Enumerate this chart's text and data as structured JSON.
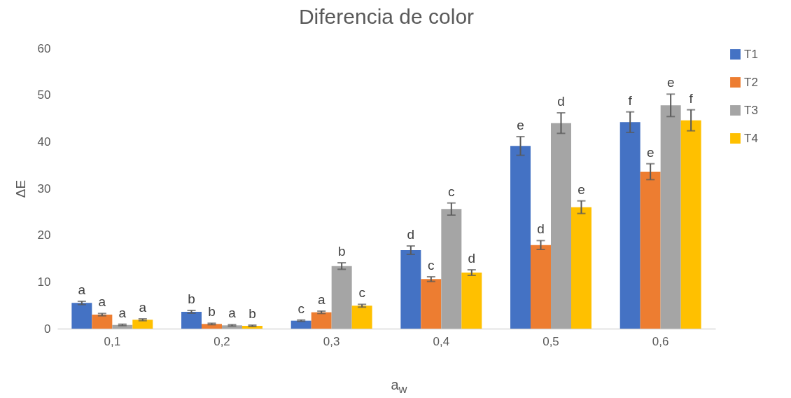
{
  "chart_data": {
    "type": "bar",
    "title": "Diferencia de color",
    "xlabel": "a$_{w}$",
    "ylabel": "ΔE",
    "categories": [
      "0,1",
      "0,2",
      "0,3",
      "0,4",
      "0,5",
      "0,6"
    ],
    "series": [
      {
        "name": "T1",
        "color": "#4472c4",
        "values": [
          5.5,
          3.6,
          1.7,
          16.8,
          39.1,
          44.2
        ],
        "errors": [
          0.35,
          0.3,
          0.15,
          0.9,
          2.0,
          2.2
        ],
        "value_labels": [
          "a",
          "b",
          "c",
          "d",
          "e",
          "f"
        ]
      },
      {
        "name": "T2",
        "color": "#ed7d31",
        "values": [
          3.0,
          1.0,
          3.5,
          10.6,
          17.9,
          33.6
        ],
        "errors": [
          0.25,
          0.15,
          0.25,
          0.5,
          0.95,
          1.7
        ],
        "value_labels": [
          "a",
          "b",
          "a",
          "c",
          "d",
          "e"
        ]
      },
      {
        "name": "T3",
        "color": "#a5a5a5",
        "values": [
          0.8,
          0.7,
          13.4,
          25.6,
          44.0,
          47.8
        ],
        "errors": [
          0.15,
          0.15,
          0.7,
          1.3,
          2.2,
          2.4
        ],
        "value_labels": [
          "a",
          "a",
          "b",
          "c",
          "d",
          "e"
        ]
      },
      {
        "name": "T4",
        "color": "#ffc000",
        "values": [
          1.9,
          0.6,
          4.9,
          12.0,
          26.0,
          44.6
        ],
        "errors": [
          0.2,
          0.15,
          0.3,
          0.6,
          1.35,
          2.25
        ],
        "value_labels": [
          "a",
          "b",
          "c",
          "d",
          "e",
          "f"
        ]
      }
    ],
    "ylim": [
      0,
      60
    ],
    "yticks": [
      0,
      10,
      20,
      30,
      40,
      50,
      60
    ],
    "legend": "right"
  }
}
